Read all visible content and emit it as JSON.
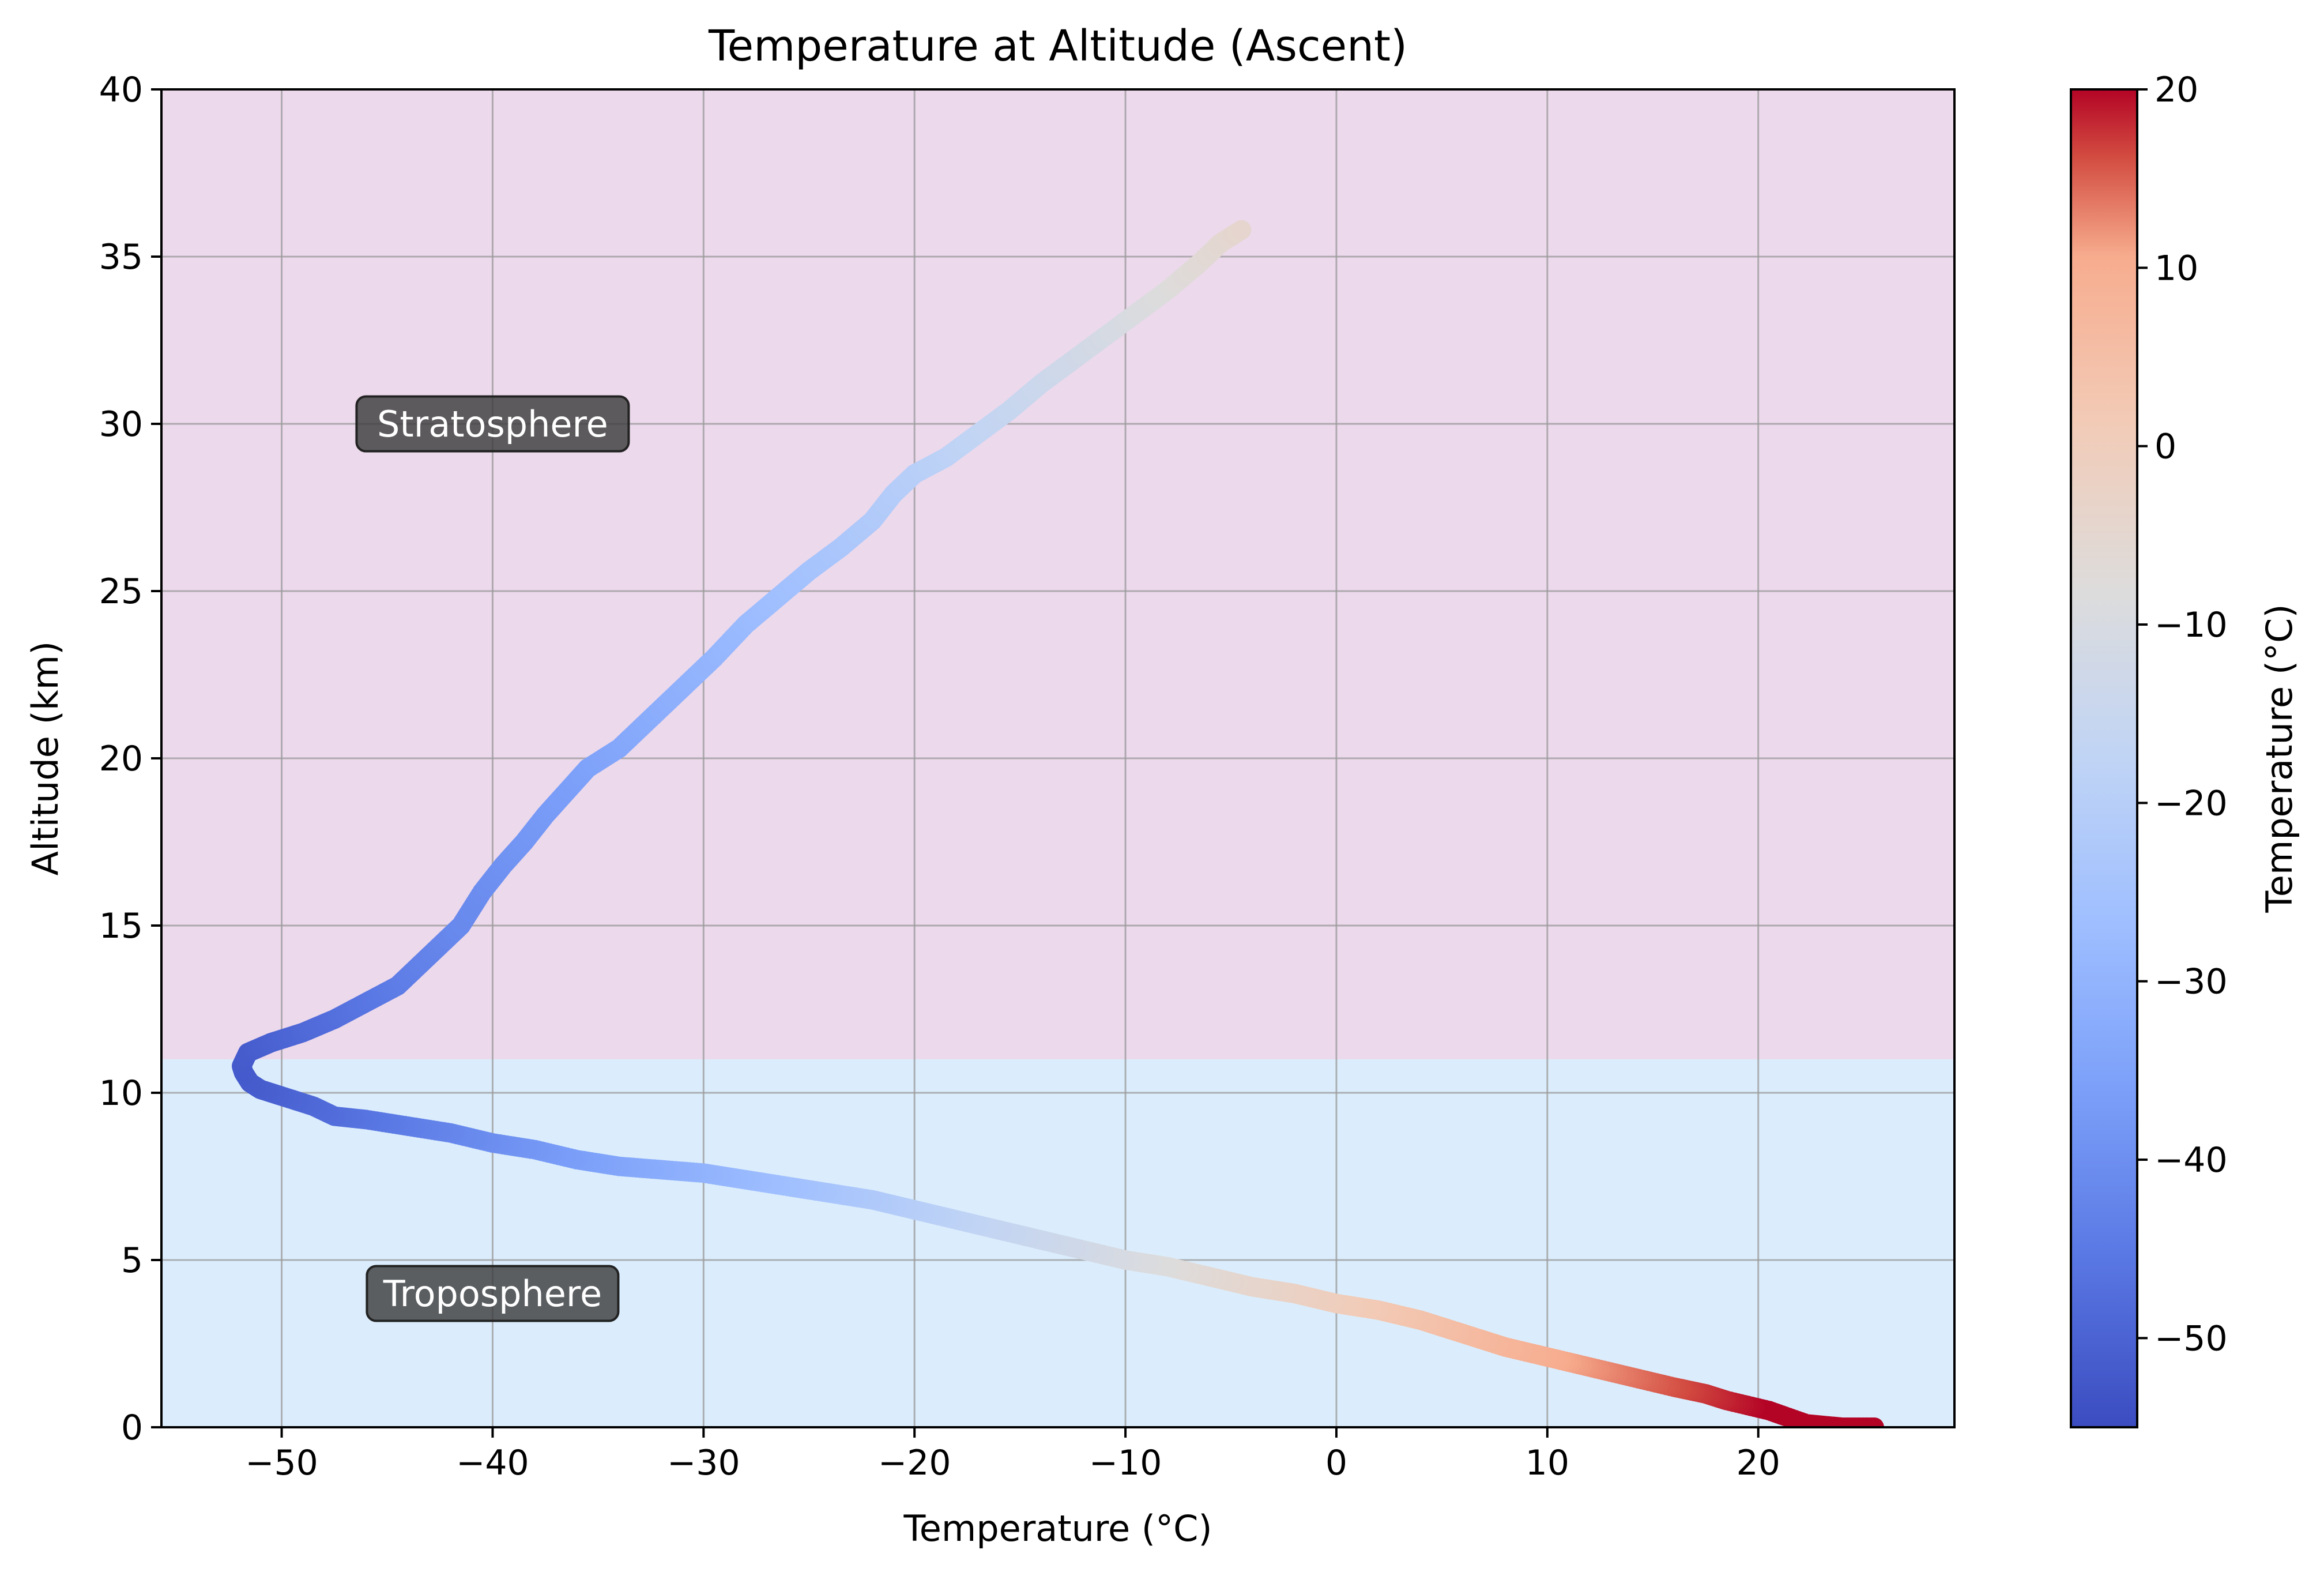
{
  "chart_data": {
    "type": "scatter",
    "title": "Temperature at Altitude (Ascent)",
    "xlabel": "Temperature (°C)",
    "ylabel": "Altitude (km)",
    "xlim": [
      -55.7,
      29.3
    ],
    "ylim": [
      0,
      40
    ],
    "x_ticks": [
      -50,
      -40,
      -30,
      -20,
      -10,
      0,
      10,
      20
    ],
    "x_tick_labels": [
      "−50",
      "−40",
      "−30",
      "−20",
      "−10",
      "0",
      "10",
      "20"
    ],
    "y_ticks": [
      0,
      5,
      10,
      15,
      20,
      25,
      30,
      35,
      40
    ],
    "y_tick_labels": [
      "0",
      "5",
      "10",
      "15",
      "20",
      "25",
      "30",
      "35",
      "40"
    ],
    "grid": true,
    "colormap": "coolwarm",
    "colorbar": {
      "label": "Temperature (°C)",
      "range": [
        -55,
        20
      ],
      "ticks": [
        20,
        10,
        0,
        -10,
        -20,
        -30,
        -40,
        -50
      ],
      "tick_labels": [
        "20",
        "10",
        "0",
        "−10",
        "−20",
        "−30",
        "−40",
        "−50"
      ]
    },
    "regions": [
      {
        "label": "Troposphere",
        "y_range": [
          0,
          11
        ],
        "color": "#dbedfc",
        "label_pos": [
          -40,
          4
        ]
      },
      {
        "label": "Stratosphere",
        "y_range": [
          11,
          40
        ],
        "color": "#ecd9ec",
        "label_pos": [
          -40,
          30
        ]
      }
    ],
    "series": [
      {
        "x": [
          25.5,
          24.0,
          22.3,
          20.5,
          18.5,
          17.5,
          16.0,
          14.0,
          12.0,
          10.0,
          8.0,
          6.0,
          4.0,
          2.0,
          0.0,
          -2.0,
          -4.0,
          -6.0,
          -8.0,
          -10.0,
          -12.0,
          -14.0,
          -16.0,
          -18.0,
          -20.0,
          -22.0,
          -24.0,
          -26.0,
          -28.0,
          -30.0,
          -32.0,
          -34.0,
          -36.0,
          -38.0,
          -40.0,
          -42.0,
          -44.0,
          -46.0,
          -47.5,
          -48.5,
          -50.0,
          -51.0,
          -51.5,
          -51.8,
          -51.9,
          -51.6,
          -50.5,
          -49.0,
          -47.5,
          -46.0,
          -44.5,
          -43.5,
          -42.5,
          -41.5,
          -40.5,
          -39.5,
          -38.5,
          -37.5,
          -36.5,
          -35.5,
          -34.0,
          -32.5,
          -31.0,
          -29.5,
          -28.0,
          -26.5,
          -25.0,
          -23.5,
          -22.0,
          -21.0,
          -20.0,
          -18.5,
          -17.0,
          -15.5,
          -14.0,
          -12.5,
          -11.0,
          -9.5,
          -8.0,
          -6.5,
          -5.5,
          -4.5
        ],
        "y": [
          0.0,
          0.0,
          0.1,
          0.5,
          0.8,
          1.0,
          1.2,
          1.5,
          1.8,
          2.1,
          2.4,
          2.8,
          3.2,
          3.5,
          3.7,
          4.0,
          4.2,
          4.5,
          4.8,
          5.0,
          5.3,
          5.6,
          5.9,
          6.2,
          6.5,
          6.8,
          7.0,
          7.2,
          7.4,
          7.6,
          7.7,
          7.8,
          8.0,
          8.3,
          8.5,
          8.8,
          9.0,
          9.2,
          9.3,
          9.6,
          9.9,
          10.1,
          10.3,
          10.6,
          10.8,
          11.2,
          11.5,
          11.8,
          12.2,
          12.7,
          13.2,
          13.8,
          14.4,
          15.0,
          16.0,
          16.8,
          17.5,
          18.3,
          19.0,
          19.7,
          20.3,
          21.2,
          22.1,
          23.0,
          24.0,
          24.8,
          25.6,
          26.3,
          27.1,
          27.9,
          28.5,
          29.0,
          29.7,
          30.4,
          31.2,
          31.9,
          32.6,
          33.3,
          34.0,
          34.8,
          35.4,
          35.8
        ]
      }
    ]
  }
}
